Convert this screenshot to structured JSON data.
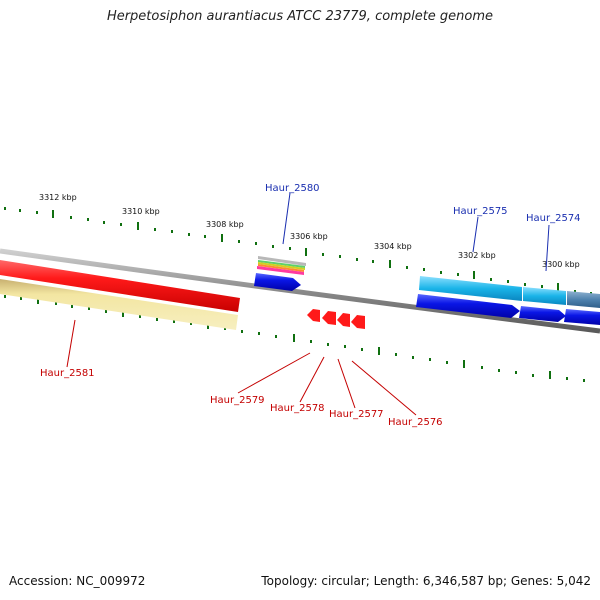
{
  "title": "Herpetosiphon aurantiacus ATCC 23779, complete genome",
  "footer": {
    "accession": "Accession: NC_009972",
    "summary": "Topology: circular; Length: 6,346,587 bp; Genes: 5,042"
  },
  "ruler": {
    "labels": [
      "3312 kbp",
      "3310 kbp",
      "3308 kbp",
      "3306 kbp",
      "3304 kbp",
      "3302 kbp",
      "3300 kbp"
    ]
  },
  "genes": {
    "top": [
      "Haur_2580",
      "Haur_2575",
      "Haur_2574"
    ],
    "bottom": [
      "Haur_2581",
      "Haur_2579",
      "Haur_2578",
      "Haur_2577",
      "Haur_2576"
    ]
  },
  "colors": {
    "backbone": "#888888",
    "forward_cds": "#1010e0",
    "reverse_cds": "#ff1010",
    "highlight_cyan": "#1ab4e8",
    "tick_green": "#107010",
    "label_blue": "#1a2fb0",
    "label_red": "#c40000"
  }
}
